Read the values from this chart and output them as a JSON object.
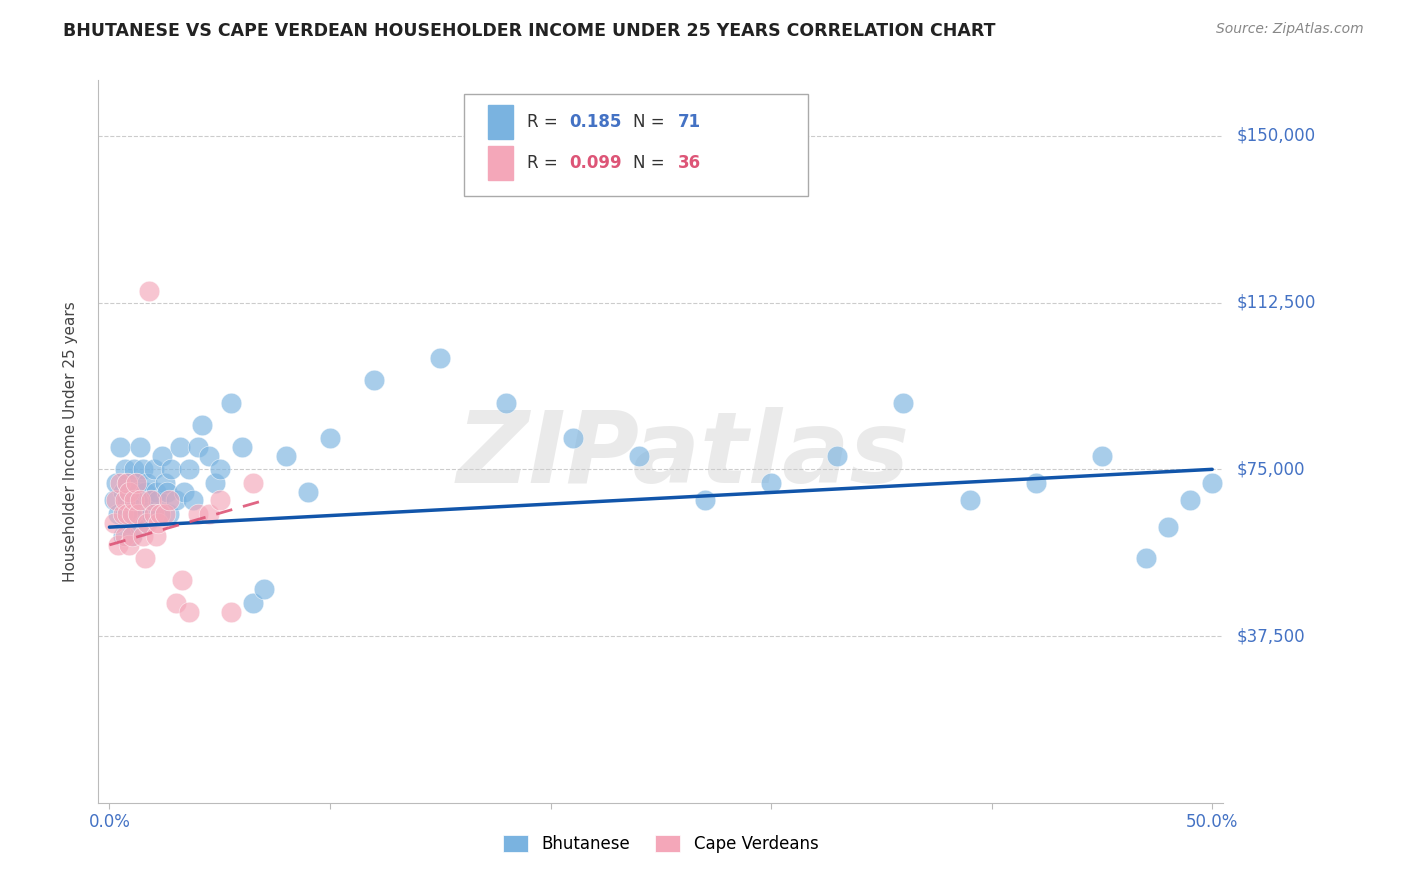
{
  "title": "BHUTANESE VS CAPE VERDEAN HOUSEHOLDER INCOME UNDER 25 YEARS CORRELATION CHART",
  "source": "Source: ZipAtlas.com",
  "ylabel": "Householder Income Under 25 years",
  "ytick_labels": [
    "$150,000",
    "$112,500",
    "$75,000",
    "$37,500"
  ],
  "ytick_values": [
    150000,
    112500,
    75000,
    37500
  ],
  "ymin": 0,
  "ymax": 162500,
  "xmin": -0.005,
  "xmax": 0.505,
  "legend1_R": "0.185",
  "legend1_N": "71",
  "legend2_R": "0.099",
  "legend2_N": "36",
  "blue_color": "#7ab3e0",
  "pink_color": "#f4a7b9",
  "blue_line_color": "#1155aa",
  "pink_line_color": "#dd5577",
  "axis_label_color": "#4472c4",
  "watermark": "ZIPatlas",
  "bhutanese_x": [
    0.002,
    0.003,
    0.004,
    0.005,
    0.006,
    0.006,
    0.007,
    0.007,
    0.008,
    0.008,
    0.009,
    0.009,
    0.01,
    0.01,
    0.011,
    0.011,
    0.012,
    0.012,
    0.013,
    0.013,
    0.014,
    0.014,
    0.015,
    0.015,
    0.016,
    0.016,
    0.017,
    0.018,
    0.019,
    0.02,
    0.021,
    0.022,
    0.023,
    0.024,
    0.025,
    0.026,
    0.027,
    0.028,
    0.03,
    0.032,
    0.034,
    0.036,
    0.038,
    0.04,
    0.042,
    0.045,
    0.048,
    0.05,
    0.055,
    0.06,
    0.065,
    0.07,
    0.08,
    0.09,
    0.1,
    0.12,
    0.15,
    0.18,
    0.21,
    0.24,
    0.27,
    0.3,
    0.33,
    0.36,
    0.39,
    0.42,
    0.45,
    0.47,
    0.48,
    0.49,
    0.5
  ],
  "bhutanese_y": [
    68000,
    72000,
    65000,
    80000,
    70000,
    60000,
    75000,
    65000,
    68000,
    72000,
    63000,
    70000,
    67000,
    60000,
    75000,
    65000,
    68000,
    72000,
    65000,
    70000,
    80000,
    62000,
    75000,
    68000,
    70000,
    63000,
    72000,
    68000,
    65000,
    75000,
    70000,
    68000,
    65000,
    78000,
    72000,
    70000,
    65000,
    75000,
    68000,
    80000,
    70000,
    75000,
    68000,
    80000,
    85000,
    78000,
    72000,
    75000,
    90000,
    80000,
    45000,
    48000,
    78000,
    70000,
    82000,
    95000,
    100000,
    90000,
    82000,
    78000,
    68000,
    72000,
    78000,
    90000,
    68000,
    72000,
    78000,
    55000,
    62000,
    68000,
    72000
  ],
  "capeverdean_x": [
    0.002,
    0.003,
    0.004,
    0.005,
    0.006,
    0.007,
    0.007,
    0.008,
    0.008,
    0.009,
    0.009,
    0.01,
    0.01,
    0.011,
    0.012,
    0.013,
    0.014,
    0.015,
    0.016,
    0.017,
    0.018,
    0.019,
    0.02,
    0.021,
    0.022,
    0.023,
    0.025,
    0.027,
    0.03,
    0.033,
    0.036,
    0.04,
    0.045,
    0.05,
    0.055,
    0.065
  ],
  "capeverdean_y": [
    63000,
    68000,
    58000,
    72000,
    65000,
    60000,
    68000,
    72000,
    65000,
    58000,
    70000,
    65000,
    60000,
    68000,
    72000,
    65000,
    68000,
    60000,
    55000,
    63000,
    115000,
    68000,
    65000,
    60000,
    63000,
    65000,
    65000,
    68000,
    45000,
    50000,
    43000,
    65000,
    65000,
    68000,
    43000,
    72000
  ],
  "blue_trendline_x": [
    0.0,
    0.5
  ],
  "blue_trendline_y": [
    62000,
    75000
  ],
  "pink_trendline_x": [
    0.0,
    0.07
  ],
  "pink_trendline_y": [
    58000,
    68000
  ]
}
